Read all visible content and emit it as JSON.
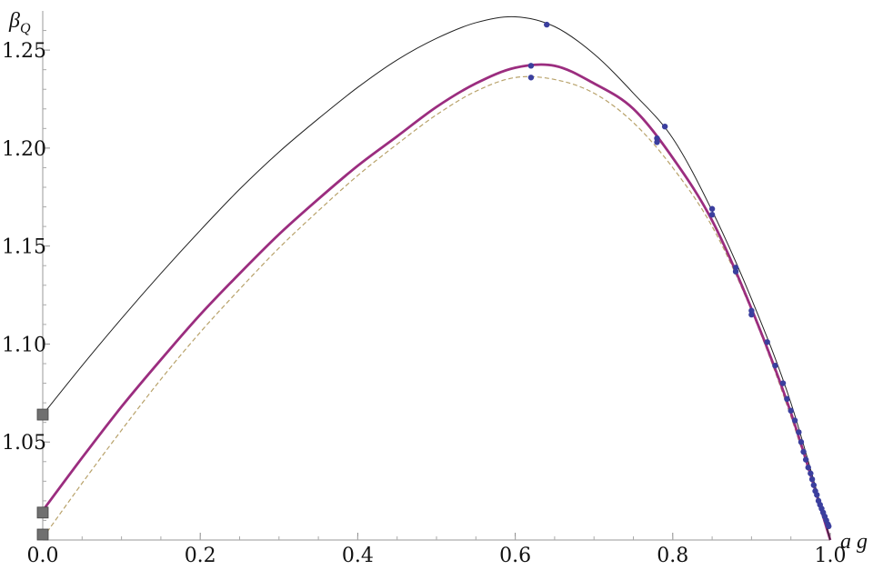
{
  "chart_data": {
    "type": "line",
    "xlabel": "a g",
    "ylabel_main": "β",
    "ylabel_sub": "Q",
    "xlim": [
      0.0,
      1.0
    ],
    "ylim": [
      1.0,
      1.27
    ],
    "x_ticks": [
      0.0,
      0.2,
      0.4,
      0.6,
      0.8,
      1.0
    ],
    "x_tick_labels": [
      "0.0",
      "0.2",
      "0.4",
      "0.6",
      "0.8",
      "1.0"
    ],
    "y_ticks": [
      1.05,
      1.1,
      1.15,
      1.2,
      1.25
    ],
    "y_tick_labels": [
      "1.05",
      "1.10",
      "1.15",
      "1.20",
      "1.25"
    ],
    "grid": false,
    "colors": {
      "upper_curve": "#222222",
      "middle_curve": "#9b2d7f",
      "lower_curve": "#b8a26a",
      "points": "#3b3f9e",
      "squares": "#707070"
    },
    "series": [
      {
        "style": "thin-solid",
        "x": [
          0.0,
          0.05,
          0.1,
          0.15,
          0.2,
          0.25,
          0.3,
          0.35,
          0.4,
          0.45,
          0.5,
          0.55,
          0.6,
          0.65,
          0.7,
          0.75,
          0.8,
          0.85,
          0.9,
          0.95,
          1.0
        ],
        "y": [
          1.064,
          1.089,
          1.113,
          1.136,
          1.158,
          1.179,
          1.198,
          1.215,
          1.231,
          1.245,
          1.256,
          1.264,
          1.267,
          1.262,
          1.248,
          1.228,
          1.205,
          1.168,
          1.123,
          1.07,
          1.0
        ]
      },
      {
        "style": "thick-solid",
        "x": [
          0.0,
          0.05,
          0.1,
          0.15,
          0.2,
          0.25,
          0.3,
          0.35,
          0.4,
          0.45,
          0.5,
          0.55,
          0.6,
          0.65,
          0.7,
          0.75,
          0.8,
          0.85,
          0.9,
          0.95,
          1.0
        ],
        "y": [
          1.015,
          1.042,
          1.068,
          1.092,
          1.115,
          1.136,
          1.156,
          1.174,
          1.191,
          1.206,
          1.221,
          1.233,
          1.241,
          1.242,
          1.233,
          1.22,
          1.195,
          1.163,
          1.118,
          1.065,
          1.0
        ]
      },
      {
        "style": "dashed",
        "x": [
          0.0,
          0.05,
          0.1,
          0.15,
          0.2,
          0.25,
          0.3,
          0.35,
          0.4,
          0.45,
          0.5,
          0.55,
          0.6,
          0.65,
          0.7,
          0.75,
          0.8,
          0.85,
          0.9,
          0.95,
          1.0
        ],
        "y": [
          1.001,
          1.029,
          1.056,
          1.082,
          1.106,
          1.128,
          1.149,
          1.168,
          1.186,
          1.202,
          1.217,
          1.229,
          1.236,
          1.235,
          1.228,
          1.213,
          1.19,
          1.16,
          1.117,
          1.063,
          1.0
        ]
      }
    ],
    "points": {
      "x": [
        0.64,
        0.62,
        0.62,
        0.79,
        0.78,
        0.78,
        0.85,
        0.85,
        0.88,
        0.88,
        0.9,
        0.9,
        0.92,
        0.93,
        0.94,
        0.945,
        0.95,
        0.955,
        0.96,
        0.963,
        0.966,
        0.969,
        0.972,
        0.975,
        0.977,
        0.979,
        0.981,
        0.983,
        0.985,
        0.987,
        0.989,
        0.991,
        0.993,
        0.995,
        0.997,
        0.998
      ],
      "y": [
        1.263,
        1.242,
        1.236,
        1.211,
        1.205,
        1.203,
        1.169,
        1.166,
        1.139,
        1.137,
        1.117,
        1.115,
        1.101,
        1.089,
        1.08,
        1.072,
        1.066,
        1.061,
        1.055,
        1.05,
        1.045,
        1.041,
        1.037,
        1.034,
        1.031,
        1.028,
        1.025,
        1.023,
        1.02,
        1.018,
        1.016,
        1.014,
        1.012,
        1.01,
        1.008,
        1.007
      ]
    },
    "squares": {
      "x": [
        0.0,
        0.0,
        0.0
      ],
      "y": [
        1.064,
        1.014,
        1.0
      ]
    }
  }
}
